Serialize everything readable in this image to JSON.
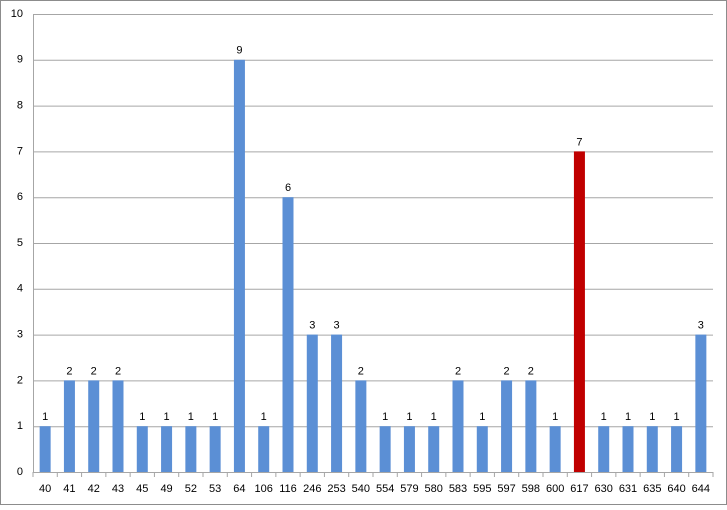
{
  "chart_data": {
    "type": "bar",
    "categories": [
      "40",
      "41",
      "42",
      "43",
      "45",
      "49",
      "52",
      "53",
      "64",
      "106",
      "116",
      "246",
      "253",
      "540",
      "554",
      "579",
      "580",
      "583",
      "595",
      "597",
      "598",
      "600",
      "617",
      "630",
      "631",
      "635",
      "640",
      "644"
    ],
    "values": [
      1,
      2,
      2,
      2,
      1,
      1,
      1,
      1,
      9,
      1,
      6,
      3,
      3,
      2,
      1,
      1,
      1,
      2,
      1,
      2,
      2,
      1,
      7,
      1,
      1,
      1,
      1,
      3
    ],
    "colors": [
      "#5b8fd5",
      "#5b8fd5",
      "#5b8fd5",
      "#5b8fd5",
      "#5b8fd5",
      "#5b8fd5",
      "#5b8fd5",
      "#5b8fd5",
      "#5b8fd5",
      "#5b8fd5",
      "#5b8fd5",
      "#5b8fd5",
      "#5b8fd5",
      "#5b8fd5",
      "#5b8fd5",
      "#5b8fd5",
      "#5b8fd5",
      "#5b8fd5",
      "#5b8fd5",
      "#5b8fd5",
      "#5b8fd5",
      "#5b8fd5",
      "#c00000",
      "#5b8fd5",
      "#5b8fd5",
      "#5b8fd5",
      "#5b8fd5",
      "#5b8fd5"
    ],
    "ylim": [
      0,
      10
    ],
    "yticks": [
      0,
      1,
      2,
      3,
      4,
      5,
      6,
      7,
      8,
      9,
      10
    ],
    "grid": true
  }
}
